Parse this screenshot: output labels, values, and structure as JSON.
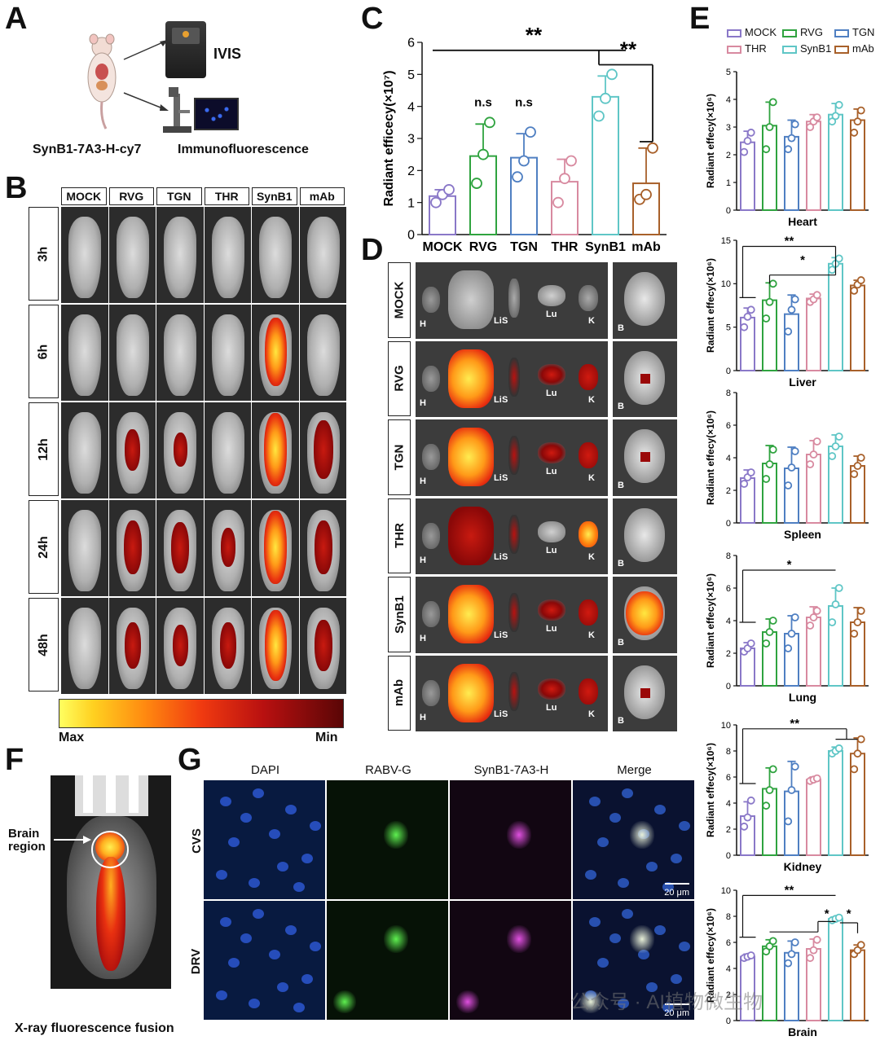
{
  "panels": {
    "a": {
      "letter": "A",
      "ivis": "IVIS",
      "probe": "SynB1-7A3-H-cy7",
      "if": "Immunofluorescence"
    },
    "b": {
      "letter": "B",
      "groups": [
        "MOCK",
        "RVG",
        "TGN",
        "THR",
        "SynB1",
        "mAb"
      ],
      "times": [
        "3h",
        "6h",
        "12h",
        "24h",
        "48h"
      ],
      "scale_max": "Max",
      "scale_min": "Min"
    },
    "c": {
      "letter": "C"
    },
    "d": {
      "letter": "D",
      "groups": [
        "MOCK",
        "RVG",
        "TGN",
        "THR",
        "SynB1",
        "mAb"
      ],
      "organs": [
        "H",
        "Li",
        "S",
        "Lu",
        "K"
      ],
      "brain": "B"
    },
    "e": {
      "letter": "E"
    },
    "f": {
      "letter": "F",
      "label": "Brain region",
      "caption": "X-ray fluorescence fusion"
    },
    "g": {
      "letter": "G",
      "columns": [
        "DAPI",
        "RABV-G",
        "SynB1-7A3-H",
        "Merge"
      ],
      "rows": [
        "CVS",
        "DRV"
      ],
      "scalebar": "20 μm"
    }
  },
  "watermark": "公众号 · AI植物微生物",
  "colors": {
    "MOCK": "#8a78c8",
    "RVG": "#2fa33f",
    "TGN": "#4f7fc2",
    "THR": "#d88aa0",
    "SynB1": "#5fc6c6",
    "mAb": "#a8602a"
  },
  "chart_data": [
    {
      "id": "C",
      "type": "bar",
      "categories": [
        "MOCK",
        "RVG",
        "TGN",
        "THR",
        "SynB1",
        "mAb"
      ],
      "values": [
        1.2,
        2.45,
        2.4,
        1.65,
        4.3,
        1.6
      ],
      "errors": [
        0.2,
        1.0,
        0.75,
        0.7,
        0.65,
        1.1
      ],
      "points": [
        [
          1.0,
          1.25,
          1.4
        ],
        [
          1.6,
          2.5,
          3.5
        ],
        [
          1.8,
          2.3,
          3.2
        ],
        [
          1.0,
          1.75,
          2.3
        ],
        [
          3.7,
          4.25,
          5.0
        ],
        [
          1.1,
          1.25,
          2.7
        ]
      ],
      "ylabel": "Radiant efficecy(×10⁷)",
      "ylim": [
        0,
        6
      ],
      "yticks": [
        0,
        1,
        2,
        3,
        4,
        5,
        6
      ],
      "annotations": [
        "n.s",
        "n.s",
        "**",
        "**"
      ]
    },
    {
      "id": "E-Heart",
      "type": "bar",
      "xlabel": "Heart",
      "ylabel": "Radiant effecy(×10⁶)",
      "categories": [
        "MOCK",
        "RVG",
        "TGN",
        "THR",
        "SynB1",
        "mAb"
      ],
      "values": [
        2.45,
        3.05,
        2.65,
        3.2,
        3.45,
        3.25
      ],
      "errors": [
        0.4,
        0.85,
        0.6,
        0.25,
        0.4,
        0.4
      ],
      "points": [
        [
          2.1,
          2.5,
          2.8
        ],
        [
          2.2,
          3.0,
          3.9
        ],
        [
          2.2,
          2.6,
          3.1
        ],
        [
          3.0,
          3.2,
          3.35
        ],
        [
          3.2,
          3.4,
          3.8
        ],
        [
          2.8,
          3.2,
          3.6
        ]
      ],
      "ylim": [
        0,
        5
      ],
      "yticks": [
        0,
        1,
        2,
        3,
        4,
        5
      ],
      "annotations": []
    },
    {
      "id": "E-Liver",
      "type": "bar",
      "xlabel": "Liver",
      "ylabel": "Radiant effecy(×10⁶)",
      "categories": [
        "MOCK",
        "RVG",
        "TGN",
        "THR",
        "SynB1",
        "mAb"
      ],
      "values": [
        6.1,
        8.1,
        6.5,
        8.3,
        12.3,
        9.8
      ],
      "errors": [
        1.1,
        2.0,
        2.2,
        0.5,
        0.7,
        0.6
      ],
      "points": [
        [
          5.0,
          6.2,
          7.0
        ],
        [
          6.0,
          7.9,
          10.0
        ],
        [
          4.5,
          7.0,
          8.2
        ],
        [
          7.9,
          8.2,
          8.7
        ],
        [
          11.6,
          12.3,
          12.9
        ],
        [
          9.2,
          9.9,
          10.4
        ]
      ],
      "ylim": [
        0,
        15
      ],
      "yticks": [
        0,
        5,
        10,
        15
      ],
      "annotations": [
        "**",
        "*"
      ]
    },
    {
      "id": "E-Spleen",
      "type": "bar",
      "xlabel": "Spleen",
      "ylabel": "Radiant effecy(×10⁶)",
      "categories": [
        "MOCK",
        "RVG",
        "TGN",
        "THR",
        "SynB1",
        "mAb"
      ],
      "values": [
        2.75,
        3.65,
        3.35,
        4.2,
        4.7,
        3.5
      ],
      "errors": [
        0.5,
        1.1,
        1.3,
        0.85,
        0.7,
        0.6
      ],
      "points": [
        [
          2.4,
          2.8,
          3.1
        ],
        [
          2.7,
          3.6,
          4.5
        ],
        [
          2.3,
          3.4,
          4.4
        ],
        [
          3.6,
          4.2,
          5.0
        ],
        [
          4.1,
          4.7,
          5.3
        ],
        [
          3.0,
          3.5,
          4.0
        ]
      ],
      "ylim": [
        0,
        8
      ],
      "yticks": [
        0,
        2,
        4,
        6,
        8
      ],
      "annotations": []
    },
    {
      "id": "E-Lung",
      "type": "bar",
      "xlabel": "Lung",
      "ylabel": "Radiant effecy(×10⁶)",
      "categories": [
        "MOCK",
        "RVG",
        "TGN",
        "THR",
        "SynB1",
        "mAb"
      ],
      "values": [
        2.3,
        3.3,
        3.2,
        4.2,
        4.9,
        3.9
      ],
      "errors": [
        0.35,
        0.8,
        1.1,
        0.65,
        1.1,
        0.9
      ],
      "points": [
        [
          2.1,
          2.3,
          2.6
        ],
        [
          2.6,
          3.3,
          4.0
        ],
        [
          2.3,
          3.2,
          4.2
        ],
        [
          3.7,
          4.2,
          4.6
        ],
        [
          3.9,
          5.0,
          6.0
        ],
        [
          3.2,
          3.9,
          4.6
        ]
      ],
      "ylim": [
        0,
        8
      ],
      "yticks": [
        0,
        2,
        4,
        6,
        8
      ],
      "annotations": [
        "*"
      ]
    },
    {
      "id": "E-Kidney",
      "type": "bar",
      "xlabel": "Kidney",
      "ylabel": "Radiant effecy(×10⁶)",
      "categories": [
        "MOCK",
        "RVG",
        "TGN",
        "THR",
        "SynB1",
        "mAb"
      ],
      "values": [
        3.0,
        5.1,
        4.9,
        5.8,
        8.0,
        7.8
      ],
      "errors": [
        1.1,
        1.6,
        2.3,
        0.2,
        0.3,
        1.2
      ],
      "points": [
        [
          2.2,
          2.9,
          4.2
        ],
        [
          3.8,
          5.0,
          6.6
        ],
        [
          2.6,
          5.0,
          6.8
        ],
        [
          5.7,
          5.8,
          5.9
        ],
        [
          7.8,
          8.0,
          8.2
        ],
        [
          6.6,
          7.8,
          8.9
        ]
      ],
      "ylim": [
        0,
        10
      ],
      "yticks": [
        0,
        2,
        4,
        6,
        8,
        10
      ],
      "annotations": [
        "**"
      ]
    },
    {
      "id": "E-Brain",
      "type": "bar",
      "xlabel": "Brain",
      "ylabel": "Radiant effecy(×10⁶)",
      "categories": [
        "MOCK",
        "RVG",
        "TGN",
        "THR",
        "SynB1",
        "mAb"
      ],
      "values": [
        4.9,
        5.7,
        5.2,
        5.5,
        7.8,
        5.4
      ],
      "errors": [
        0.2,
        0.5,
        0.9,
        0.75,
        0.15,
        0.4
      ],
      "points": [
        [
          4.8,
          4.9,
          5.0
        ],
        [
          5.3,
          5.7,
          6.1
        ],
        [
          4.4,
          5.1,
          6.0
        ],
        [
          4.8,
          5.4,
          6.2
        ],
        [
          7.7,
          7.8,
          7.9
        ],
        [
          5.1,
          5.4,
          5.8
        ]
      ],
      "ylim": [
        0,
        10
      ],
      "yticks": [
        0,
        2,
        4,
        6,
        8,
        10
      ],
      "annotations": [
        "**",
        "*",
        "*"
      ]
    }
  ]
}
